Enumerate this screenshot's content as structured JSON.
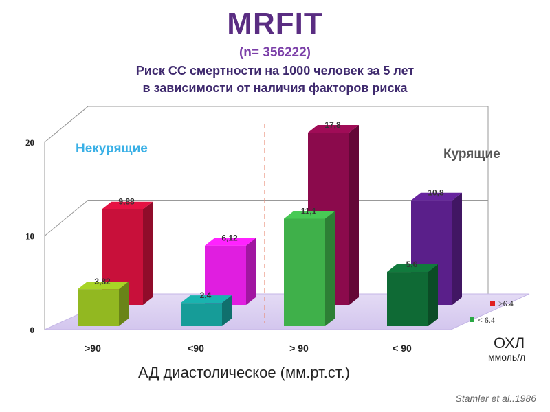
{
  "header": {
    "title": "MRFIT",
    "sample": "(n= 356222)",
    "subtitle_line1": "Риск СС смертности на 1000 человек за 5 лет",
    "subtitle_line2": "в зависимости от наличия факторов риска"
  },
  "groups": {
    "nonsmokers": "Некурящие",
    "smokers": "Курящие"
  },
  "legend": {
    "title": "ОХЛ",
    "unit": "ммоль/л",
    "items": [
      {
        "label": ">6.4",
        "color": "#e02020"
      },
      {
        "label": "< 6.4",
        "color": "#2aa844"
      }
    ]
  },
  "citation": "Stamler et al..1986",
  "chart_data": {
    "type": "bar",
    "categories": [
      ">90",
      "<90",
      "> 90",
      "< 90"
    ],
    "xlabel": "АД диастолическое (мм.рт.ст.)",
    "ylim": [
      0,
      20
    ],
    "yticks": [
      "0",
      "10",
      "20"
    ],
    "grid": true,
    "series": [
      {
        "name": ">6.4",
        "values": [
          9.88,
          6.12,
          17.8,
          10.8
        ],
        "labels": [
          "9,88",
          "6,12",
          "17,8",
          "10,8"
        ],
        "colors": [
          "#c8103a",
          "#e01ee0",
          "#8b0a4c",
          "#5a1f8a"
        ]
      },
      {
        "name": "< 6.4",
        "values": [
          3.82,
          2.4,
          11.1,
          5.6
        ],
        "labels": [
          "3,82",
          "2,4",
          "11,1",
          "5,6"
        ],
        "colors": [
          "#92b821",
          "#169c98",
          "#3fb04a",
          "#0f6a35"
        ]
      }
    ]
  }
}
